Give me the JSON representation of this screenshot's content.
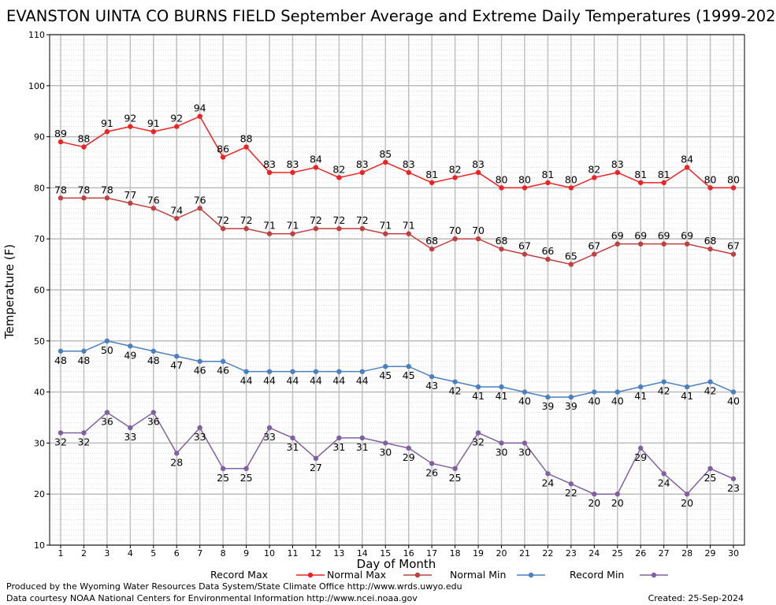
{
  "title": "EVANSTON UINTA CO BURNS FIELD September Average and Extreme Daily Temperatures (1999-202",
  "footer": {
    "produced_by": "Produced by the Wyoming Water Resources Data System/State Climate Office http://www.wrds.uwyo.edu",
    "courtesy": "Data courtesy NOAA National Centers for Environmental Information http://www.ncei.noaa.gov",
    "created": "Created:  25-Sep-2024"
  },
  "chart_data": {
    "type": "line",
    "title": "EVANSTON UINTA CO BURNS FIELD September Average and Extreme Daily Temperatures (1999-202",
    "xlabel": "Day of Month",
    "ylabel": "Temperature (F)",
    "x": [
      1,
      2,
      3,
      4,
      5,
      6,
      7,
      8,
      9,
      10,
      11,
      12,
      13,
      14,
      15,
      16,
      17,
      18,
      19,
      20,
      21,
      22,
      23,
      24,
      25,
      26,
      27,
      28,
      29,
      30
    ],
    "xlim": [
      1,
      30
    ],
    "ylim": [
      10,
      110
    ],
    "yticks": [
      10,
      20,
      30,
      40,
      50,
      60,
      70,
      80,
      90,
      100,
      110
    ],
    "grid": true,
    "legend_position": "bottom",
    "series": [
      {
        "name": "Record Max",
        "color": "#ee2222",
        "label_position": "above",
        "values": [
          89,
          88,
          91,
          92,
          91,
          92,
          94,
          86,
          88,
          83,
          83,
          84,
          82,
          83,
          85,
          83,
          81,
          82,
          83,
          80,
          80,
          81,
          80,
          82,
          83,
          81,
          81,
          84,
          80,
          80
        ]
      },
      {
        "name": "Normal Max",
        "color": "#c04040",
        "label_position": "above",
        "values": [
          78,
          78,
          78,
          77,
          76,
          74,
          76,
          72,
          72,
          71,
          71,
          72,
          72,
          72,
          71,
          71,
          68,
          70,
          70,
          68,
          67,
          66,
          65,
          67,
          69,
          69,
          69,
          69,
          68,
          67
        ]
      },
      {
        "name": "Normal Min",
        "color": "#4a7fc0",
        "label_position": "below",
        "values": [
          48,
          48,
          50,
          49,
          48,
          47,
          46,
          46,
          44,
          44,
          44,
          44,
          44,
          44,
          45,
          45,
          43,
          42,
          41,
          41,
          40,
          39,
          39,
          40,
          40,
          41,
          42,
          41,
          42,
          40
        ]
      },
      {
        "name": "Record Min",
        "color": "#8060a0",
        "label_position": "below",
        "values": [
          32,
          32,
          36,
          33,
          36,
          28,
          33,
          25,
          25,
          33,
          31,
          27,
          31,
          31,
          30,
          29,
          26,
          25,
          32,
          30,
          30,
          24,
          22,
          20,
          20,
          29,
          24,
          20,
          25,
          23
        ]
      }
    ]
  }
}
